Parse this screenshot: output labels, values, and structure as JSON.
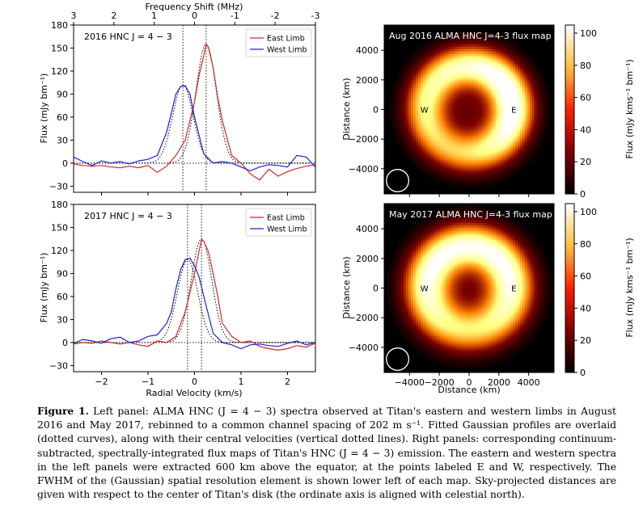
{
  "chart_data": [
    {
      "type": "line",
      "panel": "top-left",
      "label": "2016 HNC J = 4 − 3",
      "top_axis_label": "Frequency Shift (MHz)",
      "top_ticks": [
        "3",
        "2",
        "1",
        "0",
        "-1",
        "-2",
        "-3"
      ],
      "top_tick_values": [
        3,
        2,
        1,
        0,
        -1,
        -2,
        -3
      ],
      "ylabel": "Flux (mJy bm⁻¹)",
      "xlim": [
        -2.6,
        2.6
      ],
      "ylim": [
        -38,
        180
      ],
      "y_ticks": [
        -30,
        0,
        30,
        60,
        90,
        120,
        150,
        180
      ],
      "x_tick_values": [
        -2,
        -1,
        0,
        1,
        2
      ],
      "legend_position": "upper right",
      "fit_center_lines": [
        -0.25,
        0.25
      ],
      "series": [
        {
          "name": "East Limb",
          "color": "#d62728",
          "fit": {
            "amp": 155,
            "center": 0.25,
            "sigma": 0.22
          },
          "x": [
            -2.6,
            -2.4,
            -2.2,
            -2.0,
            -1.8,
            -1.6,
            -1.4,
            -1.2,
            -1.0,
            -0.8,
            -0.6,
            -0.4,
            -0.2,
            0.0,
            0.1,
            0.2,
            0.25,
            0.3,
            0.4,
            0.5,
            0.6,
            0.8,
            1.0,
            1.2,
            1.4,
            1.6,
            1.8,
            2.0,
            2.2,
            2.4,
            2.6
          ],
          "y": [
            -1,
            -3,
            -4,
            -3,
            -5,
            -6,
            -4,
            -6,
            -3,
            -12,
            -4,
            10,
            30,
            80,
            115,
            140,
            155,
            150,
            125,
            85,
            55,
            10,
            0,
            -14,
            -22,
            -8,
            -17,
            -11,
            -7,
            -4,
            -2
          ]
        },
        {
          "name": "West Limb",
          "color": "#1f1fd0",
          "fit": {
            "amp": 102,
            "center": -0.25,
            "sigma": 0.22
          },
          "x": [
            -2.6,
            -2.4,
            -2.2,
            -2.0,
            -1.8,
            -1.6,
            -1.4,
            -1.2,
            -1.0,
            -0.8,
            -0.6,
            -0.5,
            -0.4,
            -0.3,
            -0.2,
            -0.1,
            0.0,
            0.2,
            0.4,
            0.6,
            0.8,
            1.0,
            1.2,
            1.4,
            1.6,
            1.8,
            2.0,
            2.2,
            2.4,
            2.6
          ],
          "y": [
            8,
            2,
            -3,
            3,
            0,
            2,
            -1,
            3,
            5,
            10,
            40,
            65,
            90,
            100,
            101,
            90,
            60,
            12,
            0,
            2,
            0,
            -5,
            -10,
            -5,
            -2,
            -3,
            -5,
            10,
            8,
            -5
          ]
        }
      ]
    },
    {
      "type": "line",
      "panel": "bottom-left",
      "label": "2017 HNC J = 4 − 3",
      "xlabel": "Radial Velocity (km/s)",
      "ylabel": "Flux (mJy bm⁻¹)",
      "xlim": [
        -2.6,
        2.6
      ],
      "ylim": [
        -38,
        180
      ],
      "y_ticks": [
        -30,
        0,
        30,
        60,
        90,
        120,
        150,
        180
      ],
      "x_ticks": [
        "−2",
        "−1",
        "0",
        "1",
        "2"
      ],
      "x_tick_values": [
        -2,
        -1,
        0,
        1,
        2
      ],
      "legend_position": "upper right",
      "fit_center_lines": [
        -0.15,
        0.15
      ],
      "series": [
        {
          "name": "East Limb",
          "color": "#d62728",
          "fit": {
            "amp": 135,
            "center": 0.15,
            "sigma": 0.22
          },
          "x": [
            -2.6,
            -2.4,
            -2.2,
            -2.0,
            -1.8,
            -1.6,
            -1.4,
            -1.2,
            -1.0,
            -0.8,
            -0.6,
            -0.4,
            -0.2,
            0.0,
            0.1,
            0.15,
            0.2,
            0.3,
            0.4,
            0.5,
            0.6,
            0.8,
            1.0,
            1.2,
            1.4,
            1.6,
            1.8,
            2.0,
            2.2,
            2.4,
            2.6
          ],
          "y": [
            -2,
            0,
            -1,
            2,
            0,
            -2,
            0,
            -3,
            -5,
            2,
            0,
            8,
            40,
            90,
            120,
            134,
            132,
            118,
            90,
            60,
            25,
            8,
            0,
            2,
            -5,
            -8,
            -10,
            -8,
            -4,
            -6,
            -1
          ]
        },
        {
          "name": "West Limb",
          "color": "#1f1fd0",
          "fit": {
            "amp": 108,
            "center": -0.15,
            "sigma": 0.22
          },
          "x": [
            -2.6,
            -2.4,
            -2.2,
            -2.0,
            -1.8,
            -1.6,
            -1.4,
            -1.2,
            -1.0,
            -0.8,
            -0.6,
            -0.5,
            -0.4,
            -0.3,
            -0.2,
            -0.1,
            0.0,
            0.1,
            0.2,
            0.4,
            0.6,
            0.8,
            1.0,
            1.2,
            1.4,
            1.6,
            1.8,
            2.0,
            2.2,
            2.4,
            2.6
          ],
          "y": [
            -1,
            4,
            2,
            -1,
            5,
            7,
            0,
            2,
            8,
            10,
            25,
            40,
            70,
            95,
            108,
            110,
            100,
            85,
            60,
            12,
            0,
            -3,
            -8,
            -3,
            -2,
            -4,
            -5,
            -1,
            2,
            -3,
            0
          ]
        }
      ]
    },
    {
      "type": "heatmap",
      "panel": "top-right",
      "title": "Aug 2016 ALMA HNC J=4-3 flux map",
      "ylabel": "Distance (km)",
      "y_ticks": [
        "4000",
        "2000",
        "0",
        "−2000",
        "−4000"
      ],
      "y_tick_values": [
        4000,
        2000,
        0,
        -2000,
        -4000
      ],
      "x_tick_values": [
        -4000,
        -2000,
        0,
        2000,
        4000
      ],
      "range_km": [
        -5700,
        5700
      ],
      "point_labels": [
        "W",
        "E"
      ],
      "point_positions_km": [
        [
          -3000,
          0
        ],
        [
          3000,
          0
        ]
      ],
      "colorbar_label": "Flux (mJy kms⁻¹ bm⁻¹)",
      "colorbar_ticks": [
        "0",
        "20",
        "40",
        "60",
        "80",
        "100"
      ],
      "colorbar_tick_values": [
        0,
        20,
        40,
        60,
        80,
        100
      ],
      "colorbar_max": 105,
      "colormap": "afmhot",
      "beam": {
        "x_km": -4800,
        "y_km": -4800,
        "r_km": 750
      },
      "ring": {
        "radius_km": 2900,
        "width_km": 950,
        "peak": 105,
        "eastwest_boost": "ne"
      }
    },
    {
      "type": "heatmap",
      "panel": "bottom-right",
      "title": "May 2017 ALMA HNC J=4-3 flux map",
      "xlabel": "Distance (km)",
      "ylabel": "Distance (km)",
      "x_ticks": [
        "−4000",
        "−2000",
        "0",
        "2000",
        "4000"
      ],
      "x_tick_values": [
        -4000,
        -2000,
        0,
        2000,
        4000
      ],
      "y_ticks": [
        "4000",
        "2000",
        "0",
        "−2000",
        "−4000"
      ],
      "y_tick_values": [
        4000,
        2000,
        0,
        -2000,
        -4000
      ],
      "range_km": [
        -5700,
        5700
      ],
      "point_labels": [
        "W",
        "E"
      ],
      "point_positions_km": [
        [
          -3000,
          0
        ],
        [
          3000,
          0
        ]
      ],
      "colorbar_label": "Flux (mJy kms⁻¹ bm⁻¹)",
      "colorbar_ticks": [
        "0",
        "20",
        "40",
        "60",
        "80",
        "100"
      ],
      "colorbar_tick_values": [
        0,
        20,
        40,
        60,
        80,
        100
      ],
      "colorbar_max": 105,
      "colormap": "afmhot",
      "beam": {
        "x_km": -4800,
        "y_km": -4800,
        "r_km": 750
      },
      "ring": {
        "radius_km": 2800,
        "width_km": 1050,
        "peak": 105,
        "eastwest_boost": "north"
      }
    }
  ],
  "caption": {
    "label": "Figure 1.",
    "text": " Left panel: ALMA HNC (J = 4 − 3) spectra observed at Titan's eastern and western limbs in August 2016 and May 2017, rebinned to a common channel spacing of 202 m s⁻¹. Fitted Gaussian profiles are overlaid (dotted curves), along with their central velocities (vertical dotted lines). Right panels: corresponding continuum-subtracted, spectrally-integrated flux maps of Titan's HNC (J = 4 − 3) emission. The eastern and western spectra in the left panels were extracted 600 km above the equator, at the points labeled E and W, respectively. The FWHM of the (Gaussian) spatial resolution element is shown lower left of each map. Sky-projected distances are given with respect to the center of Titan's disk (the ordinate axis is aligned with celestial north)."
  }
}
